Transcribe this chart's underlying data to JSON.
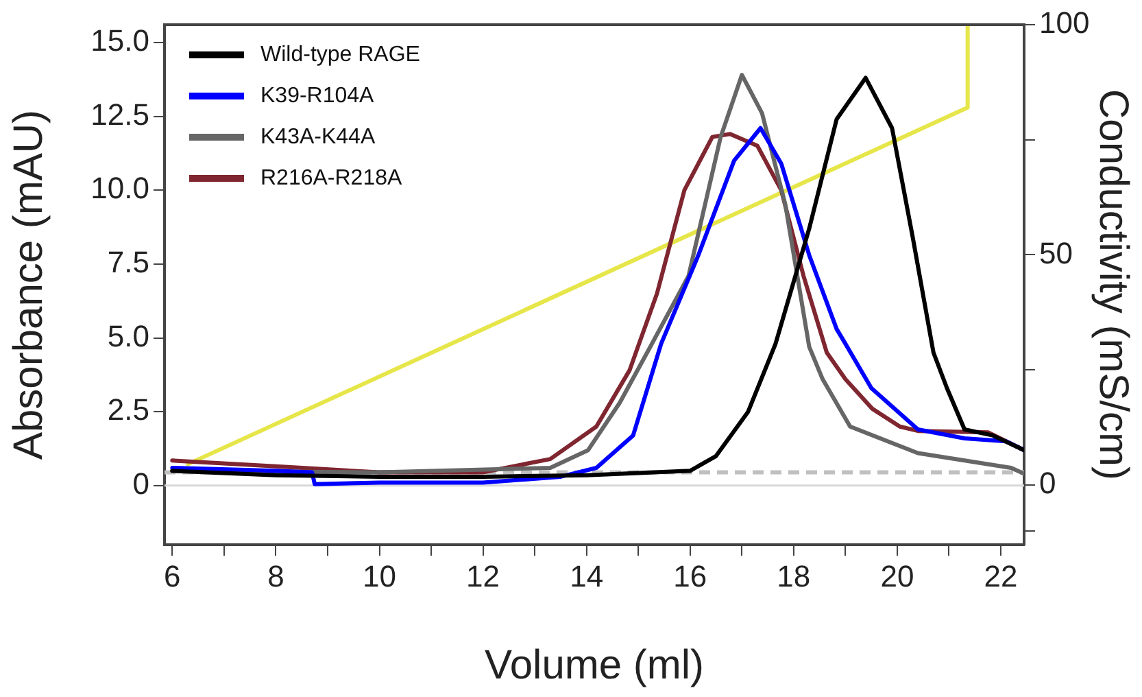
{
  "chart_data": {
    "type": "line",
    "xlabel": "Volume (ml)",
    "ylabel": "Absorbance (mAU)",
    "y2label": "Conductivity (mS/cm)",
    "xlim": [
      5.85,
      22.45
    ],
    "xticks": [
      6,
      {
        "value": 7,
        "label": null
      },
      8,
      {
        "value": 9,
        "label": null
      },
      10,
      {
        "value": 11,
        "label": null
      },
      12,
      {
        "value": 13,
        "label": null
      },
      14,
      {
        "value": 15,
        "label": null
      },
      16,
      {
        "value": 17,
        "label": null
      },
      18,
      {
        "value": 19,
        "label": null
      },
      20,
      {
        "value": 21,
        "label": null
      },
      22
    ],
    "ylim": [
      -2,
      15.6
    ],
    "yticks": [
      0,
      {
        "value": 2.5,
        "label": "2.5"
      },
      {
        "value": 5,
        "label": "5.0"
      },
      {
        "value": 7.5,
        "label": "7.5"
      },
      {
        "value": 10,
        "label": "10.0"
      },
      {
        "value": 12.5,
        "label": "12.5"
      },
      {
        "value": 15,
        "label": "15.0"
      }
    ],
    "y2lim": [
      -13,
      100
    ],
    "y2ticks": [
      {
        "value": -10,
        "label": null
      },
      0,
      {
        "value": 25,
        "label": null
      },
      50,
      {
        "value": 75,
        "label": null
      },
      100
    ],
    "grid": false,
    "legend": "top left",
    "marker": "none",
    "line_style": "solid",
    "ref_lines": [
      {
        "axis": "y",
        "value": 0,
        "color": "#d8d8d8",
        "line_style": "solid"
      },
      {
        "axis": "y",
        "value": 0.45,
        "color": "#c0c0c0",
        "line_style": "dashed"
      }
    ],
    "series": [
      {
        "name": "Wild-type RAGE",
        "color": "#000000",
        "x": [
          6,
          8,
          10,
          12,
          14,
          16,
          16.5,
          17.12,
          17.65,
          18.3,
          18.83,
          19.39,
          19.9,
          20.3,
          20.7,
          20.96,
          21.3,
          21.84,
          22.45
        ],
        "values": [
          0.5,
          0.35,
          0.3,
          0.3,
          0.35,
          0.5,
          1.0,
          2.5,
          4.8,
          8.7,
          12.4,
          13.8,
          12.1,
          8.4,
          4.5,
          3.3,
          1.9,
          1.7,
          1.2
        ]
      },
      {
        "name": "K39-R104A",
        "color": "#0000ff",
        "x": [
          6,
          8,
          8.7,
          8.75,
          10,
          12,
          13.5,
          14.19,
          14.9,
          15.44,
          16.16,
          16.85,
          17.36,
          17.76,
          18.3,
          18.83,
          19.0,
          19.5,
          20.4,
          21.3,
          22.1,
          22.45
        ],
        "values": [
          0.6,
          0.5,
          0.45,
          0.05,
          0.1,
          0.1,
          0.3,
          0.6,
          1.7,
          4.8,
          7.8,
          11.0,
          12.1,
          10.9,
          7.8,
          5.3,
          4.8,
          3.3,
          1.9,
          1.6,
          1.5,
          1.2
        ]
      },
      {
        "name": "K43A-K44A",
        "color": "#666666",
        "x": [
          6,
          10,
          13.3,
          14.03,
          14.64,
          15.17,
          15.97,
          16.59,
          17.0,
          17.39,
          17.84,
          18.3,
          18.56,
          19.09,
          20.4,
          22.2,
          22.45
        ],
        "values": [
          0.5,
          0.45,
          0.6,
          1.2,
          2.8,
          4.5,
          7.1,
          11.8,
          13.9,
          12.6,
          9.5,
          4.7,
          3.6,
          2.0,
          1.1,
          0.6,
          0.4
        ]
      },
      {
        "name": "R216A-R218A",
        "color": "#7f2630",
        "x": [
          6,
          8,
          10,
          12,
          13.3,
          14.19,
          14.83,
          15.36,
          15.89,
          16.43,
          16.77,
          17.3,
          17.76,
          18.19,
          18.64,
          19.0,
          19.52,
          20.05,
          20.4,
          21.76,
          22.45
        ],
        "values": [
          0.85,
          0.65,
          0.45,
          0.45,
          0.9,
          2.0,
          3.9,
          6.5,
          10.0,
          11.8,
          11.9,
          11.5,
          10.0,
          7.1,
          4.5,
          3.6,
          2.6,
          2.0,
          1.85,
          1.8,
          1.2
        ]
      },
      {
        "color": "#e6e64a",
        "axis": "y2",
        "x": [
          6.3,
          21.36,
          21.36
        ],
        "values": [
          4.5,
          82,
          100
        ]
      }
    ]
  }
}
